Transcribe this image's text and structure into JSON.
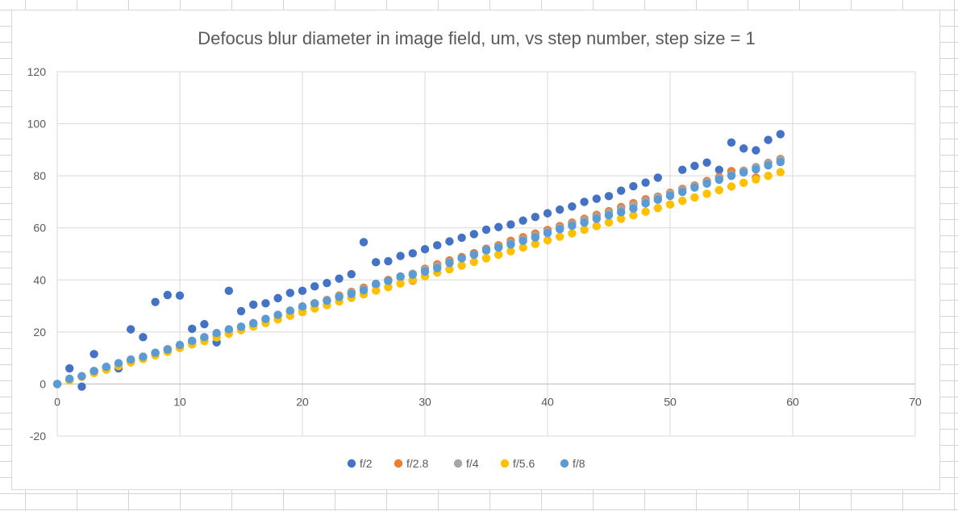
{
  "chart_data": {
    "type": "scatter",
    "title": "Defocus blur diameter in image field, um, vs step number, step size = 1",
    "xlabel": "",
    "ylabel": "",
    "xlim": [
      0,
      70
    ],
    "ylim": [
      -20,
      120
    ],
    "x_ticks": [
      0,
      10,
      20,
      30,
      40,
      50,
      60,
      70
    ],
    "y_ticks": [
      -20,
      0,
      20,
      40,
      60,
      80,
      100,
      120
    ],
    "grid": true,
    "legend_position": "bottom",
    "series": [
      {
        "name": "f/2",
        "color": "#4472C4",
        "x": [
          0,
          1,
          2,
          3,
          4,
          5,
          6,
          7,
          8,
          9,
          10,
          11,
          12,
          13,
          14,
          15,
          16,
          17,
          18,
          19,
          20,
          21,
          22,
          23,
          24,
          25,
          26,
          27,
          28,
          29,
          30,
          31,
          32,
          33,
          34,
          35,
          36,
          37,
          38,
          39,
          40,
          41,
          42,
          43,
          44,
          45,
          46,
          47,
          48,
          49,
          51,
          52,
          53,
          54,
          55,
          56,
          57,
          58,
          59
        ],
        "y": [
          0,
          6,
          -1,
          11.5,
          6.5,
          6,
          21,
          18,
          31.5,
          34.2,
          34,
          21.2,
          23,
          16,
          35.8,
          28,
          30.5,
          31,
          33,
          35,
          35.8,
          37.5,
          38.8,
          40.5,
          42.2,
          54.5,
          46.8,
          47.2,
          49.2,
          50.2,
          51.8,
          53.3,
          54.8,
          56.2,
          57.6,
          59.3,
          60.3,
          61.3,
          62.8,
          64.2,
          65.6,
          67,
          68.2,
          70,
          71.2,
          72.2,
          74.3,
          76,
          77.4,
          79.3,
          82.3,
          83.8,
          85.1,
          82.3,
          92.8,
          90.5,
          89.8,
          93.8,
          96
        ]
      },
      {
        "name": "f/2.8",
        "color": "#ED7D31",
        "x": [
          0,
          1,
          2,
          3,
          4,
          5,
          6,
          7,
          8,
          9,
          10,
          11,
          12,
          13,
          14,
          15,
          16,
          17,
          18,
          19,
          20,
          21,
          22,
          23,
          24,
          25,
          26,
          27,
          28,
          29,
          30,
          31,
          32,
          33,
          34,
          35,
          36,
          37,
          38,
          39,
          40,
          41,
          42,
          43,
          44,
          45,
          46,
          47,
          48,
          49,
          50,
          51,
          52,
          53,
          54,
          55,
          56,
          57,
          58,
          59
        ],
        "y": [
          0,
          1.7,
          3,
          5,
          6.4,
          7.5,
          9,
          10.5,
          12,
          13.4,
          14.5,
          16,
          17.5,
          19,
          20.4,
          22,
          23.3,
          25,
          26.4,
          28,
          29.6,
          31,
          32.3,
          34,
          35.4,
          37,
          38.4,
          40,
          41.3,
          39.7,
          44.3,
          46,
          47.5,
          48.8,
          50.3,
          52,
          53.3,
          55,
          56.4,
          57.8,
          59.2,
          60.7,
          62,
          63.5,
          65,
          66.4,
          68,
          69.5,
          71,
          72,
          73.5,
          75,
          76.3,
          78,
          79.5,
          81.8,
          82,
          79.3,
          85,
          86.5
        ]
      },
      {
        "name": "f/4",
        "color": "#A5A5A5",
        "x": [
          0,
          1,
          2,
          3,
          4,
          5,
          6,
          7,
          8,
          9,
          10,
          11,
          12,
          13,
          14,
          15,
          16,
          17,
          18,
          19,
          20,
          21,
          22,
          23,
          24,
          25,
          26,
          27,
          28,
          29,
          30,
          31,
          32,
          33,
          34,
          35,
          36,
          37,
          38,
          39,
          40,
          41,
          42,
          43,
          44,
          45,
          46,
          47,
          48,
          49,
          50,
          51,
          52,
          53,
          54,
          55,
          56,
          57,
          58,
          59
        ],
        "y": [
          0,
          1.5,
          2.9,
          4.4,
          5.9,
          7.4,
          8.8,
          10.2,
          11.7,
          13.2,
          14.7,
          16.1,
          17.5,
          19,
          20.5,
          22,
          23.4,
          24.8,
          26.3,
          27.8,
          29.2,
          30.7,
          32.1,
          33.6,
          35.1,
          36.5,
          38,
          39.5,
          41,
          42.4,
          43.9,
          45.3,
          46.8,
          48.3,
          49.7,
          51.2,
          52.7,
          54.2,
          55.6,
          57,
          58.5,
          60,
          61.4,
          62.9,
          64.4,
          65.8,
          67.3,
          68.8,
          70.2,
          71.7,
          73.2,
          74.6,
          76,
          77.5,
          79,
          80.5,
          81.9,
          83.4,
          84.9,
          86.3
        ]
      },
      {
        "name": "f/5.6",
        "color": "#FFC000",
        "x": [
          0,
          1,
          2,
          3,
          4,
          5,
          6,
          7,
          8,
          9,
          10,
          11,
          12,
          13,
          14,
          15,
          16,
          17,
          18,
          19,
          20,
          21,
          22,
          23,
          24,
          25,
          26,
          27,
          28,
          29,
          30,
          31,
          32,
          33,
          34,
          35,
          36,
          37,
          38,
          39,
          40,
          41,
          42,
          43,
          44,
          45,
          46,
          47,
          48,
          49,
          50,
          51,
          52,
          53,
          54,
          55,
          56,
          57,
          58,
          59
        ],
        "y": [
          0,
          1.4,
          2.8,
          4.2,
          5.5,
          6.9,
          8.3,
          9.6,
          11,
          12.4,
          13.8,
          15.2,
          16.5,
          17.9,
          19.3,
          20.7,
          22.1,
          23.4,
          24.8,
          26.2,
          27.6,
          29,
          30.3,
          31.7,
          33.1,
          34.5,
          35.9,
          37.2,
          38.6,
          40,
          41.4,
          42.8,
          44.1,
          45.5,
          46.9,
          48.3,
          49.7,
          51,
          52.4,
          53.8,
          55.2,
          56.6,
          57.9,
          59.3,
          60.7,
          62.1,
          63.5,
          64.8,
          66.2,
          67.6,
          69,
          70.4,
          71.7,
          73.1,
          74.5,
          75.9,
          77.3,
          78.6,
          80,
          81.4
        ]
      },
      {
        "name": "f/8",
        "color": "#5B9BD5",
        "x": [
          0,
          1,
          2,
          3,
          4,
          5,
          6,
          7,
          8,
          9,
          10,
          11,
          12,
          13,
          14,
          15,
          16,
          17,
          18,
          19,
          20,
          21,
          22,
          23,
          24,
          25,
          26,
          27,
          28,
          29,
          30,
          31,
          32,
          33,
          34,
          35,
          36,
          37,
          38,
          39,
          40,
          41,
          42,
          43,
          44,
          45,
          46,
          47,
          48,
          49,
          50,
          51,
          52,
          53,
          54,
          55,
          56,
          57,
          58,
          59
        ],
        "y": [
          0,
          2,
          3,
          5,
          6.6,
          8,
          9.4,
          10.5,
          12,
          13.2,
          15,
          16.6,
          18,
          19.6,
          21,
          22,
          23.3,
          25,
          26.6,
          28.2,
          29.8,
          31,
          32,
          33.4,
          34.6,
          36,
          38.5,
          39.6,
          41.3,
          42,
          43.2,
          44.5,
          46.5,
          48.3,
          49.7,
          51.5,
          52.4,
          53.6,
          55,
          56.3,
          58,
          59.5,
          60.8,
          62,
          63.5,
          64.8,
          66,
          67.4,
          69.4,
          70.8,
          72.3,
          73.8,
          75.5,
          77,
          78.5,
          80,
          81.3,
          82.5,
          84,
          85.3
        ]
      }
    ]
  }
}
